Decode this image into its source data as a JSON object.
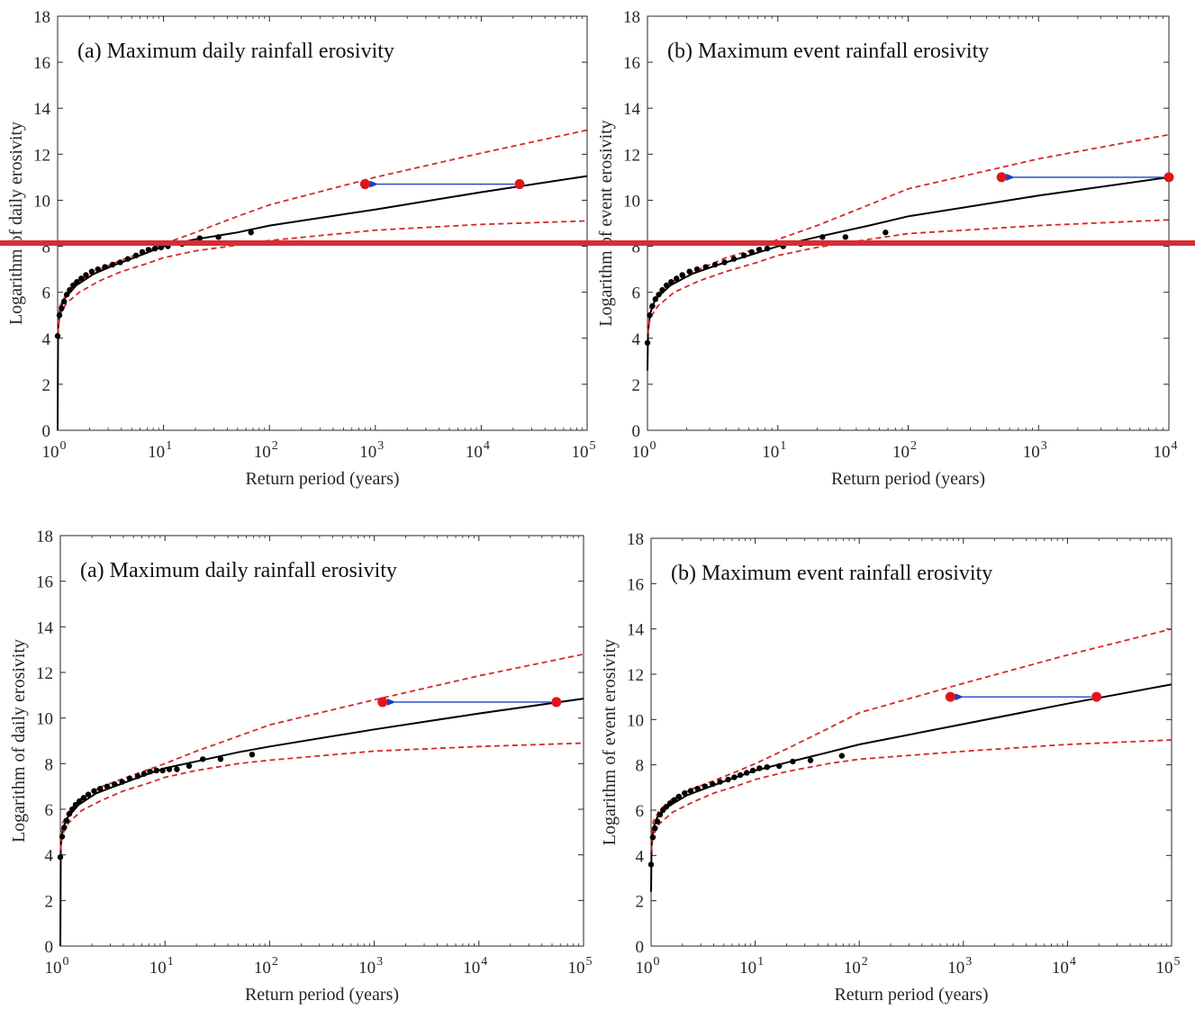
{
  "colors": {
    "fit_line": "#000000",
    "ci_line": "#d62728",
    "points": "#000000",
    "marker_red": "#e0151b",
    "arrow": "#1f3fbf",
    "divider": "#d62d34"
  },
  "chart_data": [
    {
      "type": "line",
      "title": "(a) Maximum daily rainfall erosivity",
      "xlabel": "Return period (years)",
      "ylabel": "Logarithm of daily erosivity",
      "xscale": "log",
      "xlim": [
        1,
        100000
      ],
      "ylim": [
        0,
        18
      ],
      "x_ticks": [
        1,
        10,
        100,
        1000,
        10000,
        100000
      ],
      "y_ticks": [
        0,
        2,
        4,
        6,
        8,
        10,
        12,
        14,
        16,
        18
      ],
      "series": [
        {
          "role": "fit",
          "x": [
            1.0,
            1.01,
            1.05,
            1.15,
            1.5,
            2.2,
            3.5,
            6,
            10,
            20,
            50,
            100,
            1000,
            10000,
            100000
          ],
          "y": [
            0.0,
            4.4,
            5.2,
            5.7,
            6.3,
            6.8,
            7.2,
            7.6,
            8.0,
            8.3,
            8.6,
            8.9,
            9.6,
            10.35,
            11.05
          ]
        },
        {
          "role": "ci_upper",
          "x": [
            1.0,
            1.05,
            1.2,
            1.6,
            2.5,
            4,
            7,
            10,
            20,
            50,
            100,
            1000,
            10000,
            100000
          ],
          "y": [
            4.6,
            5.4,
            5.9,
            6.5,
            7.0,
            7.4,
            7.8,
            8.1,
            8.6,
            9.3,
            9.8,
            11.0,
            12.05,
            13.05
          ]
        },
        {
          "role": "ci_lower",
          "x": [
            1.0,
            1.05,
            1.2,
            1.6,
            2.5,
            4,
            7,
            10,
            20,
            50,
            100,
            1000,
            10000,
            100000
          ],
          "y": [
            4.2,
            5.0,
            5.5,
            6.0,
            6.5,
            6.9,
            7.25,
            7.5,
            7.8,
            8.05,
            8.25,
            8.7,
            8.95,
            9.1
          ]
        }
      ],
      "points": {
        "x": [
          1.0,
          1.04,
          1.09,
          1.15,
          1.22,
          1.3,
          1.4,
          1.52,
          1.67,
          1.85,
          2.1,
          2.4,
          2.8,
          3.3,
          3.9,
          4.6,
          5.5,
          6.3,
          7.2,
          8.3,
          9.5,
          11,
          15,
          22,
          33,
          67
        ],
        "y": [
          4.1,
          5.0,
          5.3,
          5.6,
          5.9,
          6.1,
          6.3,
          6.45,
          6.6,
          6.75,
          6.9,
          7.0,
          7.1,
          7.2,
          7.3,
          7.45,
          7.6,
          7.75,
          7.85,
          7.9,
          7.95,
          8.0,
          8.1,
          8.35,
          8.4,
          8.6
        ]
      },
      "markers": [
        {
          "x": 800,
          "y": 10.7
        },
        {
          "x": 23000,
          "y": 10.7
        }
      ],
      "arrow": {
        "from_x": 23000,
        "to_x": 800,
        "y": 10.7
      }
    },
    {
      "type": "line",
      "title": "(b) Maximum event rainfall erosivity",
      "xlabel": "Return period (years)",
      "ylabel": "Logarithm of event erosivity",
      "xscale": "log",
      "xlim": [
        1,
        10000
      ],
      "ylim": [
        0,
        18
      ],
      "x_ticks": [
        1,
        10,
        100,
        1000,
        10000
      ],
      "y_ticks": [
        0,
        2,
        4,
        6,
        8,
        10,
        12,
        14,
        16,
        18
      ],
      "series": [
        {
          "role": "fit",
          "x": [
            1.0,
            1.01,
            1.05,
            1.15,
            1.5,
            2.2,
            3.5,
            6,
            10,
            20,
            50,
            100,
            1000,
            10000
          ],
          "y": [
            2.6,
            4.3,
            5.1,
            5.7,
            6.3,
            6.8,
            7.2,
            7.6,
            8.0,
            8.4,
            8.9,
            9.3,
            10.2,
            11.0
          ]
        },
        {
          "role": "ci_upper",
          "x": [
            1.0,
            1.05,
            1.2,
            1.6,
            2.5,
            4,
            7,
            10,
            20,
            50,
            100,
            1000,
            10000
          ],
          "y": [
            4.5,
            5.4,
            5.9,
            6.5,
            7.0,
            7.5,
            7.9,
            8.3,
            8.9,
            9.8,
            10.5,
            11.8,
            12.85
          ]
        },
        {
          "role": "ci_lower",
          "x": [
            1.0,
            1.05,
            1.2,
            1.6,
            2.5,
            4,
            7,
            10,
            20,
            50,
            100,
            1000,
            10000
          ],
          "y": [
            4.2,
            4.9,
            5.4,
            6.0,
            6.5,
            6.9,
            7.3,
            7.6,
            7.95,
            8.3,
            8.55,
            8.9,
            9.15
          ]
        }
      ],
      "points": {
        "x": [
          1.0,
          1.04,
          1.09,
          1.15,
          1.22,
          1.3,
          1.4,
          1.52,
          1.67,
          1.85,
          2.1,
          2.4,
          2.8,
          3.3,
          3.9,
          4.6,
          5.5,
          6.3,
          7.2,
          8.3,
          11,
          15,
          22,
          33,
          67
        ],
        "y": [
          3.8,
          5.0,
          5.4,
          5.7,
          5.9,
          6.1,
          6.3,
          6.45,
          6.6,
          6.75,
          6.9,
          7.0,
          7.1,
          7.2,
          7.3,
          7.45,
          7.6,
          7.75,
          7.85,
          7.9,
          8.0,
          8.1,
          8.4,
          8.4,
          8.6
        ]
      },
      "markers": [
        {
          "x": 520,
          "y": 11.0
        },
        {
          "x": 10000,
          "y": 11.0
        }
      ],
      "arrow": {
        "from_x": 10000,
        "to_x": 520,
        "y": 11.0
      }
    },
    {
      "type": "line",
      "title": "(a) Maximum daily rainfall erosivity",
      "xlabel": "Return period (years)",
      "ylabel": "Logarithm of daily erosivity",
      "xscale": "log",
      "xlim": [
        1,
        100000
      ],
      "ylim": [
        0,
        18
      ],
      "x_ticks": [
        1,
        10,
        100,
        1000,
        10000,
        100000
      ],
      "y_ticks": [
        0,
        2,
        4,
        6,
        8,
        10,
        12,
        14,
        16,
        18
      ],
      "series": [
        {
          "role": "fit",
          "x": [
            1.0,
            1.01,
            1.05,
            1.15,
            1.5,
            2.2,
            3.5,
            6,
            10,
            20,
            50,
            100,
            1000,
            10000,
            100000
          ],
          "y": [
            0.0,
            4.4,
            5.1,
            5.6,
            6.2,
            6.7,
            7.05,
            7.45,
            7.8,
            8.1,
            8.5,
            8.75,
            9.5,
            10.2,
            10.85
          ]
        },
        {
          "role": "ci_upper",
          "x": [
            1.0,
            1.05,
            1.2,
            1.6,
            2.5,
            4,
            7,
            10,
            20,
            50,
            100,
            1000,
            10000,
            100000
          ],
          "y": [
            4.6,
            5.4,
            5.9,
            6.5,
            7.0,
            7.35,
            7.75,
            8.0,
            8.55,
            9.2,
            9.7,
            10.8,
            11.85,
            12.8
          ]
        },
        {
          "role": "ci_lower",
          "x": [
            1.0,
            1.05,
            1.2,
            1.6,
            2.5,
            4,
            7,
            10,
            20,
            50,
            100,
            1000,
            10000,
            100000
          ],
          "y": [
            4.2,
            4.9,
            5.4,
            5.95,
            6.4,
            6.8,
            7.15,
            7.4,
            7.7,
            8.0,
            8.15,
            8.55,
            8.75,
            8.9
          ]
        }
      ],
      "points": {
        "x": [
          1.0,
          1.04,
          1.09,
          1.15,
          1.22,
          1.3,
          1.4,
          1.52,
          1.67,
          1.85,
          2.1,
          2.4,
          2.8,
          3.3,
          3.9,
          4.6,
          5.5,
          6.3,
          7.2,
          8.3,
          9.5,
          11,
          13,
          17,
          23,
          34,
          68
        ],
        "y": [
          3.9,
          4.8,
          5.2,
          5.5,
          5.8,
          6.0,
          6.2,
          6.35,
          6.5,
          6.65,
          6.8,
          6.9,
          7.0,
          7.1,
          7.2,
          7.35,
          7.45,
          7.55,
          7.65,
          7.7,
          7.7,
          7.75,
          7.75,
          7.9,
          8.2,
          8.2,
          8.4
        ]
      },
      "markers": [
        {
          "x": 1200,
          "y": 10.7
        },
        {
          "x": 55000,
          "y": 10.7
        }
      ],
      "arrow": {
        "from_x": 55000,
        "to_x": 1200,
        "y": 10.7
      }
    },
    {
      "type": "line",
      "title": "(b) Maximum event rainfall erosivity",
      "xlabel": "Return period (years)",
      "ylabel": "Logarithm of event erosivity",
      "xscale": "log",
      "xlim": [
        1,
        100000
      ],
      "ylim": [
        0,
        18
      ],
      "x_ticks": [
        1,
        10,
        100,
        1000,
        10000,
        100000
      ],
      "y_ticks": [
        0,
        2,
        4,
        6,
        8,
        10,
        12,
        14,
        16,
        18
      ],
      "series": [
        {
          "role": "fit",
          "x": [
            1.0,
            1.01,
            1.05,
            1.15,
            1.5,
            2.2,
            3.5,
            6,
            10,
            20,
            50,
            100,
            1000,
            10000,
            100000
          ],
          "y": [
            2.4,
            4.4,
            5.2,
            5.7,
            6.2,
            6.65,
            7.0,
            7.4,
            7.75,
            8.1,
            8.55,
            8.9,
            9.8,
            10.7,
            11.55
          ]
        },
        {
          "role": "ci_upper",
          "x": [
            1.0,
            1.05,
            1.2,
            1.6,
            2.5,
            4,
            7,
            10,
            20,
            50,
            100,
            1000,
            10000,
            100000
          ],
          "y": [
            4.6,
            5.5,
            6.0,
            6.5,
            6.95,
            7.3,
            7.75,
            8.05,
            8.7,
            9.6,
            10.3,
            11.6,
            12.85,
            14.0
          ]
        },
        {
          "role": "ci_lower",
          "x": [
            1.0,
            1.05,
            1.2,
            1.6,
            2.5,
            4,
            7,
            10,
            20,
            50,
            100,
            1000,
            10000,
            100000
          ],
          "y": [
            4.2,
            4.9,
            5.4,
            5.9,
            6.35,
            6.75,
            7.1,
            7.35,
            7.7,
            8.05,
            8.25,
            8.6,
            8.9,
            9.1
          ]
        }
      ],
      "points": {
        "x": [
          1.0,
          1.04,
          1.09,
          1.15,
          1.22,
          1.3,
          1.4,
          1.52,
          1.67,
          1.85,
          2.1,
          2.4,
          2.8,
          3.3,
          3.9,
          4.6,
          5.5,
          6.3,
          7.2,
          8.3,
          9.5,
          11,
          13,
          17,
          23,
          34,
          68
        ],
        "y": [
          3.6,
          4.8,
          5.2,
          5.5,
          5.8,
          6.0,
          6.15,
          6.3,
          6.45,
          6.6,
          6.75,
          6.85,
          6.95,
          7.05,
          7.15,
          7.25,
          7.35,
          7.45,
          7.55,
          7.65,
          7.75,
          7.85,
          7.9,
          7.95,
          8.15,
          8.2,
          8.4
        ]
      },
      "markers": [
        {
          "x": 750,
          "y": 11.0
        },
        {
          "x": 19000,
          "y": 11.0
        }
      ],
      "arrow": {
        "from_x": 19000,
        "to_x": 750,
        "y": 11.0
      }
    }
  ]
}
